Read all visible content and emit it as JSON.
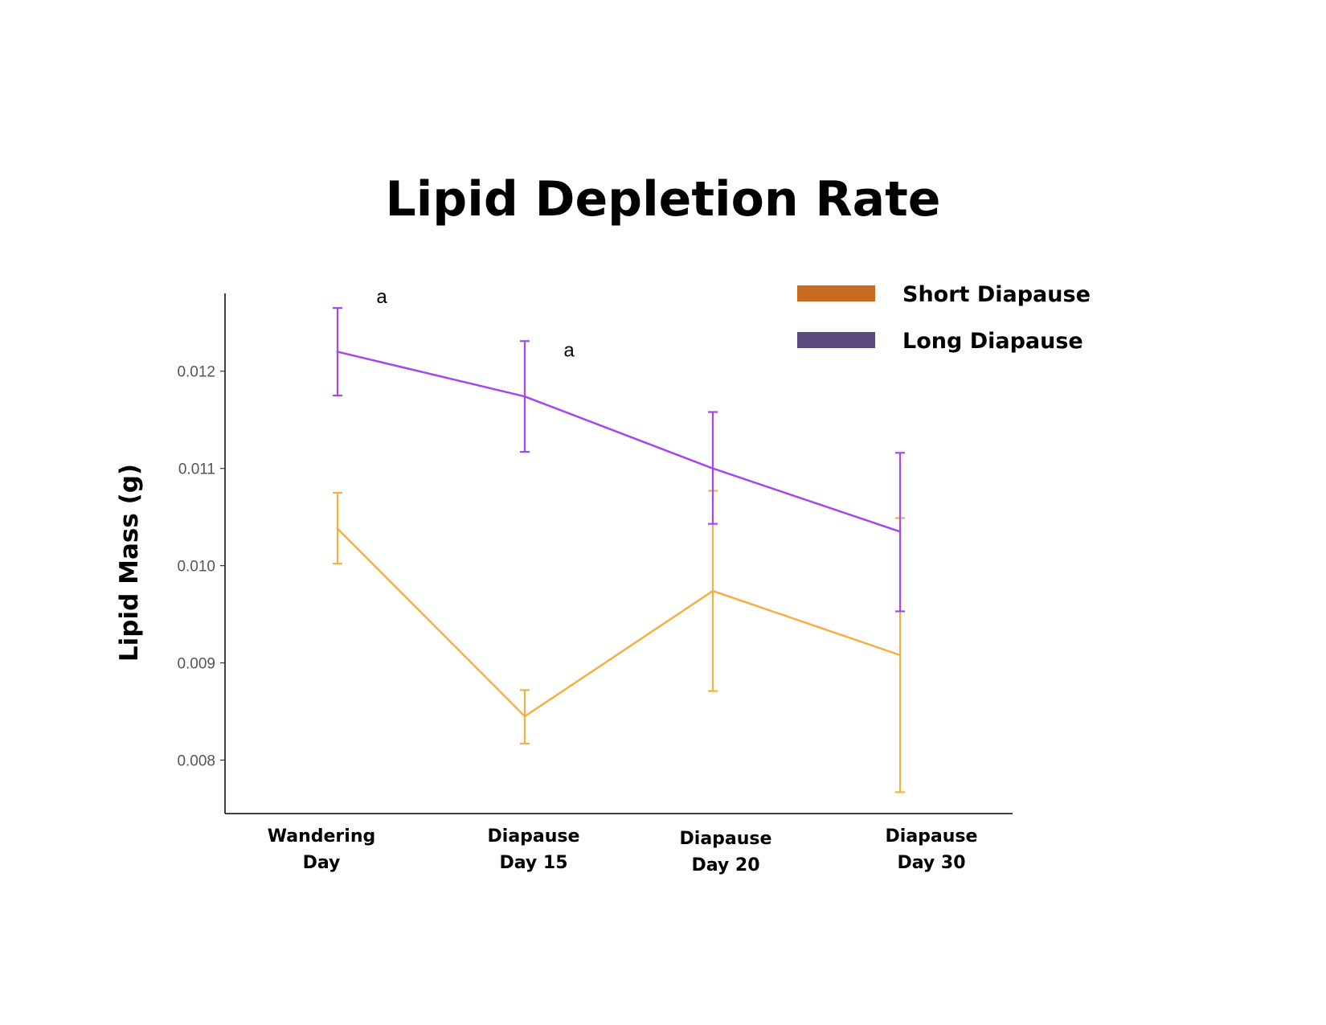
{
  "chart_data": {
    "type": "line",
    "title": "Lipid Depletion Rate",
    "xlabel": "",
    "ylabel": "Lipid Mass (g)",
    "ylim": [
      0.00745,
      0.0128
    ],
    "yticks": [
      "0.008",
      "0.009",
      "0.010",
      "0.011",
      "0.012"
    ],
    "categories": [
      [
        "Wandering",
        "Day"
      ],
      [
        "Diapause",
        "Day 15"
      ],
      [
        "Diapause",
        "Day 20"
      ],
      [
        "Diapause",
        "Day 30"
      ]
    ],
    "grid": false,
    "legend_position": "top-right",
    "series": [
      {
        "name": "Short Diapause",
        "line_color": "#F5B041",
        "legend_color": "#C96A22",
        "values": [
          0.01038,
          0.00845,
          0.00974,
          0.00908
        ],
        "error_low": [
          0.01002,
          0.00817,
          0.00871,
          0.00767
        ],
        "error_high": [
          0.01075,
          0.00872,
          0.01077,
          0.01049
        ]
      },
      {
        "name": "Long Diapause",
        "line_color": "#A347F0",
        "legend_color": "#5B4A7E",
        "values": [
          0.0122,
          0.01174,
          0.011,
          0.01035
        ],
        "error_low": [
          0.01175,
          0.01117,
          0.01043,
          0.00953
        ],
        "error_high": [
          0.01265,
          0.01231,
          0.01158,
          0.01116
        ]
      }
    ],
    "annotations": [
      {
        "text": "a",
        "category_index": 0,
        "y": 0.01275
      },
      {
        "text": "a",
        "category_index": 1,
        "y": 0.0122
      }
    ]
  }
}
